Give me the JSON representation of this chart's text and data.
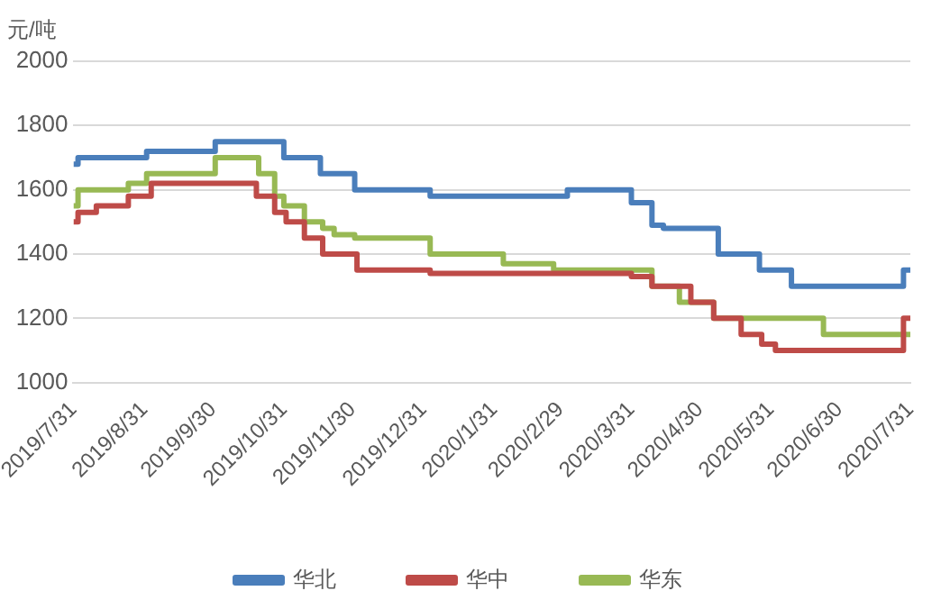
{
  "chart_data": {
    "type": "step",
    "ylabel": "元/吨",
    "ylim": [
      1000,
      2000
    ],
    "yticks": [
      1000,
      1200,
      1400,
      1600,
      1800,
      2000
    ],
    "xlim": [
      "2019-07-31",
      "2020-07-31"
    ],
    "xticks": [
      {
        "value": "2019-07-31",
        "label": "2019/7/31"
      },
      {
        "value": "2019-08-31",
        "label": "2019/8/31"
      },
      {
        "value": "2019-09-30",
        "label": "2019/9/30"
      },
      {
        "value": "2019-10-31",
        "label": "2019/10/31"
      },
      {
        "value": "2019-11-30",
        "label": "2019/11/30"
      },
      {
        "value": "2019-12-31",
        "label": "2019/12/31"
      },
      {
        "value": "2020-01-31",
        "label": "2020/1/31"
      },
      {
        "value": "2020-02-29",
        "label": "2020/2/29"
      },
      {
        "value": "2020-03-31",
        "label": "2020/3/31"
      },
      {
        "value": "2020-04-30",
        "label": "2020/4/30"
      },
      {
        "value": "2020-05-31",
        "label": "2020/5/31"
      },
      {
        "value": "2020-06-30",
        "label": "2020/6/30"
      },
      {
        "value": "2020-07-31",
        "label": "2020/7/31"
      }
    ],
    "grid": "y",
    "legend": "bottom",
    "line_style": "solid",
    "marker": "none",
    "series": [
      {
        "name": "华北",
        "color": "#4a7ebb",
        "x": [
          "2019-07-31",
          "2019-08-02",
          "2019-09-01",
          "2019-10-01",
          "2019-10-31",
          "2019-11-16",
          "2019-12-01",
          "2020-01-03",
          "2020-03-03",
          "2020-03-31",
          "2020-04-09",
          "2020-04-14",
          "2020-05-08",
          "2020-05-26",
          "2020-06-09",
          "2020-07-28",
          "2020-07-31"
        ],
        "values": [
          1680,
          1700,
          1720,
          1750,
          1700,
          1650,
          1600,
          1580,
          1600,
          1560,
          1490,
          1480,
          1400,
          1350,
          1300,
          1350,
          1350
        ]
      },
      {
        "name": "华中",
        "color": "#be4b48",
        "x": [
          "2019-07-31",
          "2019-08-02",
          "2019-08-10",
          "2019-08-24",
          "2019-09-03",
          "2019-10-19",
          "2019-10-27",
          "2019-11-01",
          "2019-11-09",
          "2019-11-17",
          "2019-12-02",
          "2020-01-03",
          "2020-03-31",
          "2020-04-09",
          "2020-04-26",
          "2020-04-29",
          "2020-05-06",
          "2020-05-18",
          "2020-05-27",
          "2020-06-02",
          "2020-07-28",
          "2020-07-31"
        ],
        "values": [
          1500,
          1530,
          1550,
          1580,
          1620,
          1580,
          1530,
          1500,
          1450,
          1400,
          1350,
          1340,
          1330,
          1300,
          1250,
          1250,
          1200,
          1150,
          1120,
          1100,
          1200,
          1200
        ]
      },
      {
        "name": "华东",
        "color": "#98b954",
        "x": [
          "2019-07-31",
          "2019-08-02",
          "2019-08-24",
          "2019-09-01",
          "2019-10-01",
          "2019-10-20",
          "2019-10-27",
          "2019-10-31",
          "2019-11-09",
          "2019-11-17",
          "2019-11-22",
          "2019-12-01",
          "2020-01-03",
          "2020-02-04",
          "2020-02-26",
          "2020-04-09",
          "2020-04-21",
          "2020-05-06",
          "2020-06-23",
          "2020-07-31"
        ],
        "values": [
          1550,
          1600,
          1620,
          1650,
          1700,
          1650,
          1580,
          1550,
          1500,
          1480,
          1460,
          1450,
          1400,
          1370,
          1350,
          1300,
          1250,
          1200,
          1150,
          1150
        ]
      }
    ]
  }
}
